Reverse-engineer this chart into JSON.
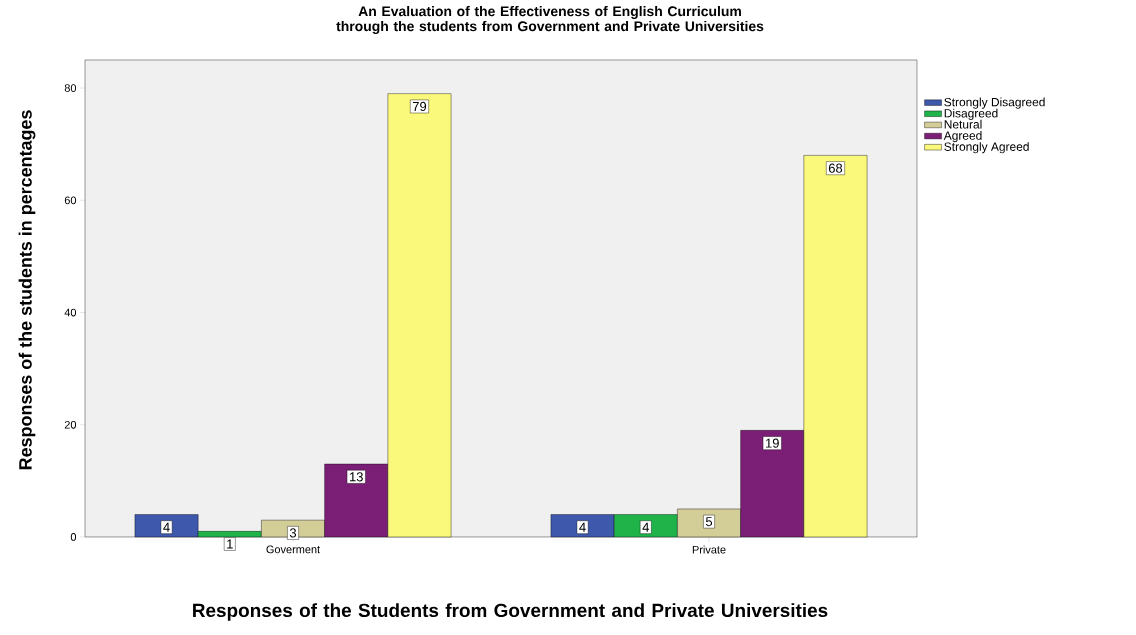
{
  "chart_data": {
    "type": "bar",
    "title": "An Evaluation of the Effectiveness of English Curriculum through the students from Government and Private Universities",
    "xlabel": "Responses of the Students from Government and Private Universities",
    "ylabel": "Responses of the students in percentages",
    "categories": [
      "Goverment",
      "Private"
    ],
    "series": [
      {
        "name": "Strongly Disagreed",
        "color": "#3e58ac",
        "values": [
          4,
          4
        ]
      },
      {
        "name": "Disagreed",
        "color": "#1fb34a",
        "values": [
          1,
          4
        ]
      },
      {
        "name": "Netural",
        "color": "#d3ce97",
        "values": [
          3,
          5
        ]
      },
      {
        "name": "Agreed",
        "color": "#7b1f76",
        "values": [
          13,
          19
        ]
      },
      {
        "name": "Strongly Agreed",
        "color": "#fbf97c",
        "values": [
          79,
          68
        ]
      }
    ],
    "ylim": [
      0,
      85
    ],
    "yticks": [
      0,
      20,
      40,
      60,
      80
    ],
    "data_labels": true,
    "legend": "top right",
    "grid": false
  }
}
